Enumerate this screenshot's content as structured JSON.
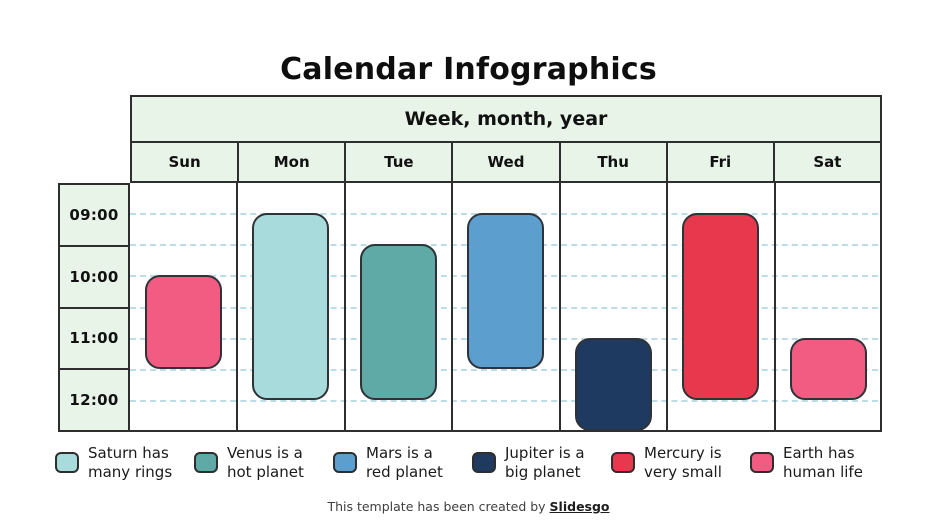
{
  "title": "Calendar Infographics",
  "calendar": {
    "header": "Week, month, year"
  },
  "footer": {
    "prefix": "This template has been created by ",
    "brand": "Slidesgo"
  },
  "colors": {
    "header_bg": "#e9f4e8",
    "table_border": "#2e2e2e",
    "dashed_gridline": "#bcdce8",
    "saturn": "#a8dbdc",
    "venus": "#5fa9a7",
    "mars": "#5c9fce",
    "jupiter": "#1e3a60",
    "mercury": "#e7384e",
    "earth": "#f25c82"
  },
  "chart_data": {
    "type": "bar",
    "variant": "weekly-calendar-schedule",
    "title": "Calendar Infographics",
    "header_label": "Week, month, year",
    "x_categories": [
      "Sun",
      "Mon",
      "Tue",
      "Wed",
      "Thu",
      "Fri",
      "Sat"
    ],
    "y_axis": {
      "ticks": [
        "09:00",
        "10:00",
        "11:00",
        "12:00"
      ],
      "start": "09:00",
      "end": "12:30",
      "interval_minutes": 30
    },
    "grid": {
      "horizontal": "dashed",
      "vertical": "solid"
    },
    "legend_position": "bottom",
    "events": [
      {
        "day": "Sun",
        "start": "10:00",
        "end": "11:30",
        "series": "Earth has human life",
        "key": "earth",
        "color": "#f25c82"
      },
      {
        "day": "Mon",
        "start": "09:00",
        "end": "12:00",
        "series": "Saturn has many rings",
        "key": "saturn",
        "color": "#a8dbdc"
      },
      {
        "day": "Tue",
        "start": "09:30",
        "end": "12:00",
        "series": "Venus is a hot planet",
        "key": "venus",
        "color": "#5fa9a7"
      },
      {
        "day": "Wed",
        "start": "09:00",
        "end": "11:30",
        "series": "Mars is a red planet",
        "key": "mars",
        "color": "#5c9fce"
      },
      {
        "day": "Thu",
        "start": "11:00",
        "end": "12:30",
        "series": "Jupiter is a big planet",
        "key": "jupiter",
        "color": "#1e3a60"
      },
      {
        "day": "Fri",
        "start": "09:00",
        "end": "12:00",
        "series": "Mercury is very small",
        "key": "mercury",
        "color": "#e7384e"
      },
      {
        "day": "Sat",
        "start": "11:00",
        "end": "12:00",
        "series": "Earth has human life",
        "key": "earth",
        "color": "#f25c82"
      }
    ],
    "legend": [
      {
        "key": "saturn",
        "color": "#a8dbdc",
        "lines": [
          "Saturn has",
          "many rings"
        ]
      },
      {
        "key": "venus",
        "color": "#5fa9a7",
        "lines": [
          "Venus is a",
          "hot planet"
        ]
      },
      {
        "key": "mars",
        "color": "#5c9fce",
        "lines": [
          "Mars is a",
          "red planet"
        ]
      },
      {
        "key": "jupiter",
        "color": "#1e3a60",
        "lines": [
          "Jupiter is a",
          "big planet"
        ]
      },
      {
        "key": "mercury",
        "color": "#e7384e",
        "lines": [
          "Mercury is",
          "very small"
        ]
      },
      {
        "key": "earth",
        "color": "#f25c82",
        "lines": [
          "Earth has",
          "human life"
        ]
      }
    ]
  }
}
